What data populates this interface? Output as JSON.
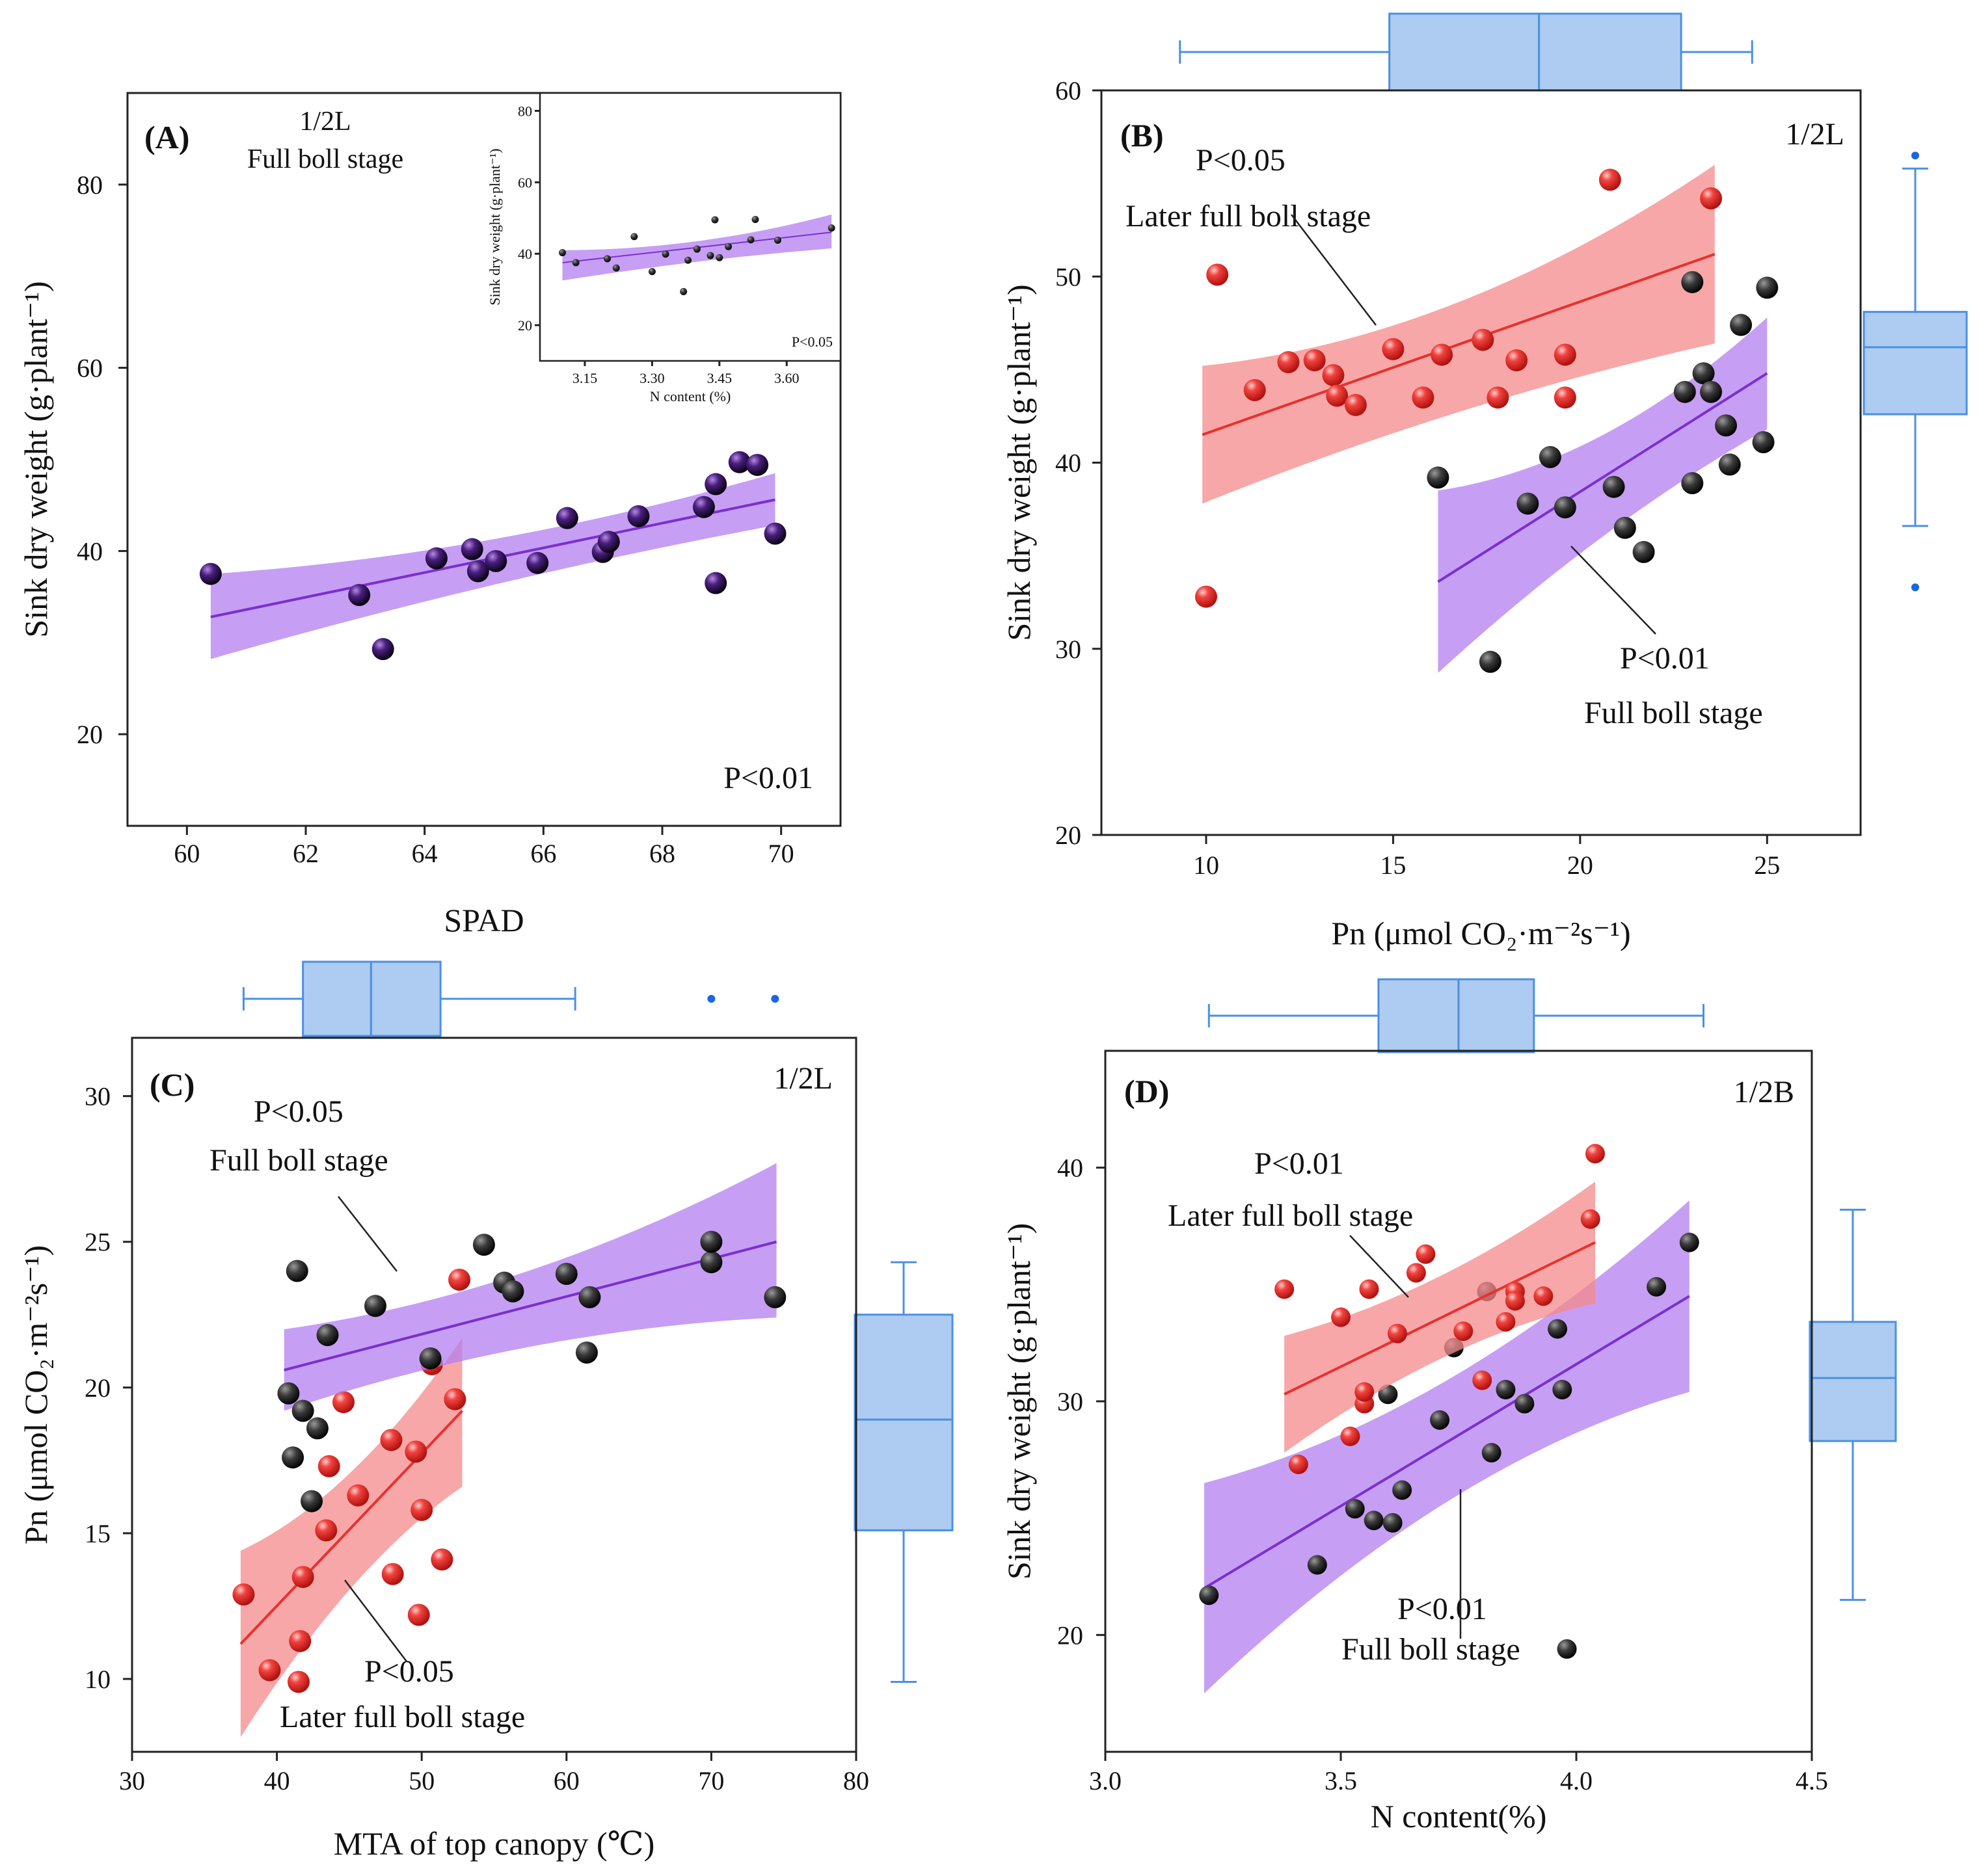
{
  "chart_data": [
    {
      "id": "A",
      "type": "scatter",
      "panel_label": "(A)",
      "annotation": [
        "1/2L",
        "Full boll stage"
      ],
      "p_text": "P<0.01",
      "xlabel": "SPAD",
      "ylabel": "Sink dry weight (g·plant⁻¹)",
      "xlim": [
        59,
        71
      ],
      "ylim": [
        10,
        90
      ],
      "xticks": [
        60,
        62,
        64,
        66,
        68,
        70
      ],
      "yticks": [
        20,
        40,
        60,
        80
      ],
      "series": [
        {
          "name": "Full boll stage",
          "color": "#7b2fd0",
          "marker_color": "#1a1a1a",
          "x": [
            60.4,
            62.9,
            63.3,
            64.2,
            64.8,
            64.9,
            65.2,
            65.9,
            66.4,
            67.0,
            67.1,
            67.6,
            68.7,
            68.9,
            68.9,
            69.3,
            69.6,
            69.9
          ],
          "y": [
            37.5,
            35.2,
            29.3,
            39.2,
            40.2,
            37.8,
            38.9,
            38.7,
            43.6,
            39.9,
            41.0,
            43.8,
            44.8,
            47.3,
            36.5,
            49.7,
            49.4,
            41.9
          ],
          "fit": [
            [
              60.4,
              32.8
            ],
            [
              69.9,
              45.6
            ]
          ],
          "band_upper": [
            [
              60.4,
              37.5
            ],
            [
              65.1,
              39.5
            ],
            [
              69.9,
              48.5
            ]
          ],
          "band_lower": [
            [
              60.4,
              28.2
            ],
            [
              65.1,
              37.0
            ],
            [
              69.9,
              42.8
            ]
          ]
        }
      ],
      "inset": {
        "xlabel": "N content (%)",
        "ylabel": "Sink dry weight (g·plant⁻¹)",
        "p_text": "P<0.05",
        "xlim": [
          3.05,
          3.72
        ],
        "ylim": [
          10,
          85
        ],
        "xticks": [
          "3.15",
          "3.30",
          "3.45",
          "3.60"
        ],
        "xtick_values": [
          3.15,
          3.3,
          3.45,
          3.6
        ],
        "yticks": [
          20,
          40,
          60,
          80
        ],
        "x": [
          3.1,
          3.13,
          3.2,
          3.22,
          3.26,
          3.3,
          3.33,
          3.37,
          3.38,
          3.4,
          3.43,
          3.44,
          3.45,
          3.47,
          3.52,
          3.53,
          3.58,
          3.7
        ],
        "y": [
          40.3,
          37.5,
          38.6,
          36.0,
          44.8,
          35.0,
          39.9,
          29.4,
          38.2,
          41.3,
          39.5,
          49.5,
          38.9,
          42.0,
          43.9,
          49.6,
          43.8,
          47.2
        ],
        "fit": [
          [
            3.1,
            37.5
          ],
          [
            3.7,
            46.0
          ]
        ],
        "band_upper": [
          [
            3.1,
            41.0
          ],
          [
            3.4,
            41.0
          ],
          [
            3.7,
            51.0
          ]
        ],
        "band_lower": [
          [
            3.1,
            32.5
          ],
          [
            3.4,
            38.5
          ],
          [
            3.7,
            41.5
          ]
        ]
      }
    },
    {
      "id": "B",
      "type": "scatter",
      "panel_label": "(B)",
      "corner_label": "1/2L",
      "xlabel": "Pn (μmol CO₂·m⁻²s⁻¹)",
      "ylabel": "Sink dry weight (g·plant⁻¹)",
      "xlim": [
        7.2,
        27.5
      ],
      "ylim": [
        20,
        60
      ],
      "xticks": [
        10,
        15,
        20,
        25
      ],
      "yticks": [
        20,
        30,
        40,
        50,
        60
      ],
      "series": [
        {
          "name": "Later full boll stage",
          "p_text": "P<0.05",
          "color": "#e8312f",
          "band_color": "#f48a8a",
          "marker_color": "#e8312f",
          "x": [
            10.0,
            10.3,
            11.3,
            12.2,
            12.9,
            13.4,
            13.5,
            14.0,
            15.0,
            15.8,
            16.3,
            17.4,
            17.8,
            18.3,
            19.6,
            19.6,
            20.8,
            23.5
          ],
          "y": [
            32.8,
            50.1,
            43.9,
            45.4,
            45.5,
            44.7,
            43.6,
            43.1,
            46.1,
            43.5,
            45.8,
            46.6,
            43.5,
            45.5,
            45.8,
            43.5,
            55.2,
            54.2
          ],
          "fit": [
            [
              9.9,
              41.5
            ],
            [
              23.6,
              51.2
            ]
          ],
          "band_upper": [
            [
              9.9,
              45.2
            ],
            [
              16.7,
              46.6
            ],
            [
              23.6,
              56.0
            ]
          ],
          "band_lower": [
            [
              9.9,
              37.8
            ],
            [
              16.7,
              43.3
            ],
            [
              23.6,
              46.4
            ]
          ]
        },
        {
          "name": "Full boll stage",
          "p_text": "P<0.01",
          "color": "#7b2fd0",
          "band_color": "#b37ff0",
          "marker_color": "#1a1a1a",
          "x": [
            16.2,
            17.6,
            18.6,
            19.2,
            19.6,
            20.9,
            21.2,
            21.7,
            22.8,
            23.0,
            23.0,
            23.3,
            23.5,
            23.9,
            24.0,
            24.3,
            24.9,
            25.0
          ],
          "y": [
            39.2,
            29.3,
            37.8,
            40.3,
            37.6,
            38.7,
            36.5,
            35.2,
            43.8,
            38.9,
            49.7,
            44.8,
            43.8,
            42.0,
            39.9,
            47.4,
            41.1,
            49.4
          ],
          "fit": [
            [
              16.2,
              33.6
            ],
            [
              25.0,
              44.8
            ]
          ],
          "band_upper": [
            [
              16.2,
              38.5
            ],
            [
              20.6,
              39.8
            ],
            [
              25.0,
              47.8
            ]
          ],
          "band_lower": [
            [
              16.2,
              28.7
            ],
            [
              20.6,
              36.8
            ],
            [
              25.0,
              41.8
            ]
          ]
        }
      ],
      "top_boxplot": {
        "min": 9.3,
        "q1": 14.9,
        "median": 18.9,
        "q3": 22.7,
        "max": 24.6
      },
      "right_boxplot": {
        "min": 36.6,
        "q1": 42.6,
        "median": 46.2,
        "q3": 48.1,
        "max": 55.8,
        "outliers": [
          56.5,
          33.3
        ]
      }
    },
    {
      "id": "C",
      "type": "scatter",
      "panel_label": "(C)",
      "corner_label": "1/2L",
      "xlabel": "MTA of top canopy (℃)",
      "ylabel": "Pn (μmol CO₂·m⁻²s⁻¹)",
      "xlim": [
        30,
        80
      ],
      "ylim": [
        7.5,
        32
      ],
      "xticks": [
        30,
        40,
        50,
        60,
        70,
        80
      ],
      "yticks": [
        10,
        15,
        20,
        25,
        30
      ],
      "series": [
        {
          "name": "Full boll stage",
          "p_text": "P<0.05",
          "color": "#7b2fd0",
          "band_color": "#b37ff0",
          "marker_color": "#1a1a1a",
          "x": [
            40.8,
            41.1,
            41.4,
            41.8,
            42.4,
            42.8,
            43.5,
            46.8,
            50.6,
            54.3,
            55.7,
            56.3,
            60.0,
            61.4,
            61.6,
            70.0,
            70.0,
            74.4
          ],
          "y": [
            19.8,
            17.6,
            24.0,
            19.2,
            16.1,
            18.6,
            21.8,
            22.8,
            21.0,
            24.9,
            23.6,
            23.3,
            23.9,
            21.2,
            23.1,
            24.3,
            25.0,
            23.1
          ],
          "fit": [
            [
              40.5,
              20.6
            ],
            [
              74.5,
              25.0
            ]
          ],
          "band_upper": [
            [
              40.5,
              22.0
            ],
            [
              57.5,
              23.2
            ],
            [
              74.5,
              27.7
            ]
          ],
          "band_lower": [
            [
              40.5,
              19.2
            ],
            [
              57.5,
              22.0
            ],
            [
              74.5,
              22.4
            ]
          ]
        },
        {
          "name": "Later full boll stage",
          "p_text": "P<0.05",
          "color": "#e8312f",
          "band_color": "#f48a8a",
          "marker_color": "#e8312f",
          "x": [
            37.7,
            39.5,
            41.5,
            41.6,
            41.8,
            43.4,
            43.6,
            44.6,
            45.6,
            47.9,
            48.0,
            49.6,
            49.8,
            50.0,
            50.7,
            51.4,
            52.3,
            52.6
          ],
          "y": [
            12.9,
            10.3,
            9.9,
            11.3,
            13.5,
            15.1,
            17.3,
            19.5,
            16.3,
            18.2,
            13.6,
            17.8,
            12.2,
            15.8,
            20.8,
            14.1,
            19.6,
            23.7
          ],
          "fit": [
            [
              37.5,
              11.2
            ],
            [
              52.8,
              19.2
            ]
          ],
          "band_upper": [
            [
              37.5,
              14.4
            ],
            [
              45.2,
              16.2
            ],
            [
              52.8,
              21.7
            ]
          ],
          "band_lower": [
            [
              37.5,
              8.0
            ],
            [
              45.2,
              14.0
            ],
            [
              52.8,
              16.6
            ]
          ]
        }
      ],
      "top_boxplot": {
        "min": 37.7,
        "q1": 41.8,
        "median": 46.5,
        "q3": 51.3,
        "max": 60.6,
        "outliers": [
          70.0,
          74.4
        ]
      },
      "right_boxplot": {
        "min": 9.9,
        "q1": 15.1,
        "median": 18.9,
        "q3": 22.5,
        "max": 24.3
      }
    },
    {
      "id": "D",
      "type": "scatter",
      "panel_label": "(D)",
      "corner_label": "1/2B",
      "xlabel": "N content(%)",
      "ylabel": "Sink dry weight (g·plant⁻¹)",
      "xlim": [
        3.0,
        4.5
      ],
      "ylim": [
        15,
        45
      ],
      "xticks": [
        "3.0",
        "3.5",
        "4.0",
        "4.5"
      ],
      "xtick_values": [
        3.0,
        3.5,
        4.0,
        4.5
      ],
      "yticks": [
        20,
        30,
        40
      ],
      "series": [
        {
          "name": "Later full boll stage",
          "p_text": "P<0.01",
          "color": "#e8312f",
          "band_color": "#f48a8a",
          "marker_color": "#e8312f",
          "x": [
            3.38,
            3.41,
            3.5,
            3.52,
            3.55,
            3.55,
            3.56,
            3.62,
            3.66,
            3.68,
            3.76,
            3.8,
            3.85,
            3.87,
            3.87,
            3.93,
            4.03,
            4.04
          ],
          "y": [
            34.8,
            27.3,
            33.6,
            28.5,
            29.9,
            30.4,
            34.8,
            32.9,
            35.5,
            36.3,
            33.0,
            30.9,
            33.4,
            34.7,
            34.3,
            34.5,
            37.8,
            40.6
          ],
          "fit": [
            [
              3.38,
              30.3
            ],
            [
              4.04,
              36.8
            ]
          ],
          "band_upper": [
            [
              3.38,
              32.8
            ],
            [
              3.71,
              34.6
            ],
            [
              4.04,
              39.4
            ]
          ],
          "band_lower": [
            [
              3.38,
              27.8
            ],
            [
              3.71,
              32.6
            ],
            [
              4.04,
              34.2
            ]
          ]
        },
        {
          "name": "Full boll stage",
          "p_text": "P<0.01",
          "color": "#7b2fd0",
          "band_color": "#b37ff0",
          "marker_color": "#1a1a1a",
          "x": [
            3.22,
            3.45,
            3.53,
            3.57,
            3.6,
            3.61,
            3.63,
            3.71,
            3.74,
            3.81,
            3.82,
            3.85,
            3.89,
            3.96,
            3.97,
            3.98,
            4.17,
            4.24
          ],
          "y": [
            21.7,
            23.0,
            25.4,
            24.9,
            30.3,
            24.8,
            26.2,
            29.2,
            32.3,
            34.7,
            27.8,
            30.5,
            29.9,
            33.1,
            30.5,
            19.4,
            34.9,
            36.8
          ],
          "fit": [
            [
              3.21,
              22.0
            ],
            [
              4.24,
              34.5
            ]
          ],
          "band_upper": [
            [
              3.21,
              26.5
            ],
            [
              3.73,
              29.3
            ],
            [
              4.24,
              38.6
            ]
          ],
          "band_lower": [
            [
              3.21,
              17.5
            ],
            [
              3.73,
              27.5
            ],
            [
              4.24,
              30.4
            ]
          ]
        }
      ],
      "top_boxplot": {
        "min": 3.22,
        "q1": 3.58,
        "median": 3.75,
        "q3": 3.91,
        "max": 4.27
      },
      "right_boxplot": {
        "min": 21.5,
        "q1": 28.3,
        "median": 31.0,
        "q3": 33.4,
        "max": 38.2
      }
    }
  ]
}
